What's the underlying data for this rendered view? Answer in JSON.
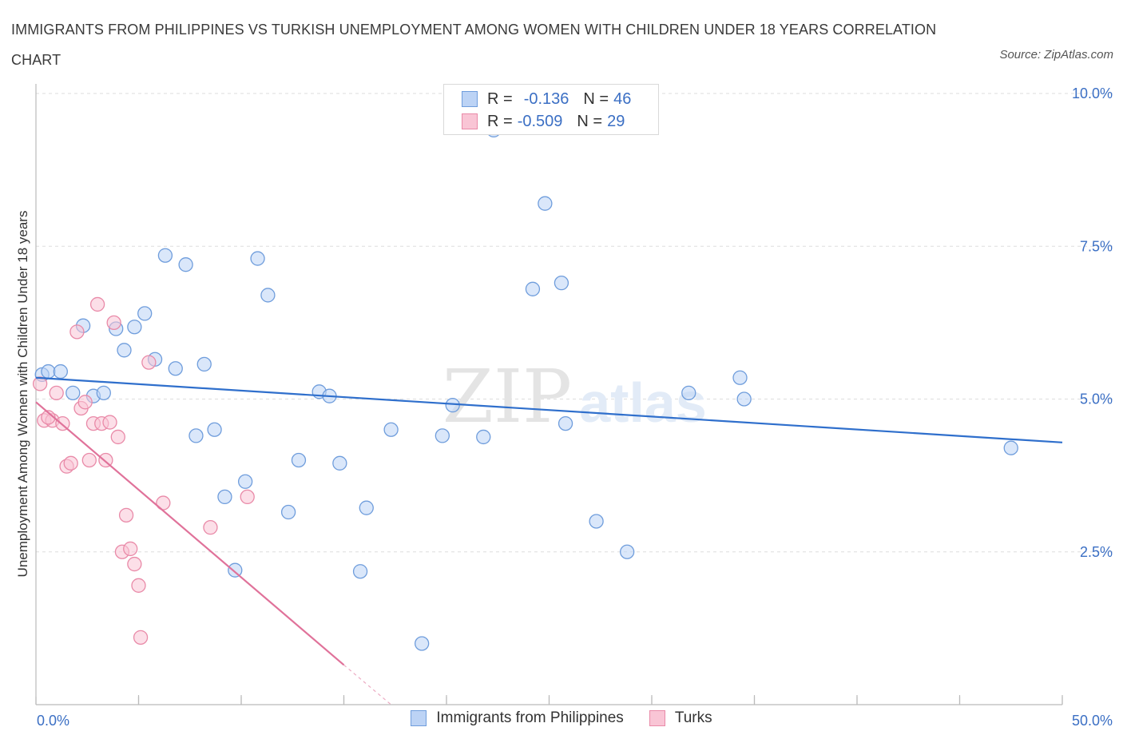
{
  "header": {
    "title": "IMMIGRANTS FROM PHILIPPINES VS TURKISH UNEMPLOYMENT AMONG WOMEN WITH CHILDREN UNDER 18 YEARS CORRELATION CHART",
    "source": "Source: ZipAtlas.com"
  },
  "watermark": {
    "zip": "ZIP",
    "atlas": "atlas"
  },
  "legend": {
    "r_label": "R =",
    "n_label": "N =",
    "rows": [
      {
        "r": "-0.136",
        "n": "46"
      },
      {
        "r": "-0.509",
        "n": "29"
      }
    ]
  },
  "colors": {
    "series1_fill": "#bcd3f5",
    "series1_stroke": "#6f9ddc",
    "series1_line": "#2f6fcc",
    "series2_fill": "#f9c5d5",
    "series2_stroke": "#e98aa8",
    "series2_line": "#e0729a",
    "axis_text": "#3b6fc4",
    "grid": "#dddddd"
  },
  "chart_data": {
    "type": "scatter",
    "title": "IMMIGRANTS FROM PHILIPPINES VS TURKISH UNEMPLOYMENT AMONG WOMEN WITH CHILDREN UNDER 18 YEARS CORRELATION CHART",
    "ylabel": "Unemployment Among Women with Children Under 18 years",
    "xlabel": "",
    "xlim": [
      0,
      50
    ],
    "ylim": [
      0,
      10.0
    ],
    "x_tick_labels": [
      "0.0%",
      "50.0%"
    ],
    "y_ticks": [
      2.5,
      5.0,
      7.5,
      10.0
    ],
    "y_tick_labels": [
      "2.5%",
      "5.0%",
      "7.5%",
      "10.0%"
    ],
    "grid": true,
    "legend_position": "top-center",
    "series": [
      {
        "name": "Immigrants from Philippines",
        "r": -0.136,
        "n": 46,
        "trend": {
          "x": [
            0,
            50
          ],
          "y": [
            5.35,
            4.29
          ]
        },
        "points": [
          [
            0.3,
            5.4
          ],
          [
            0.6,
            5.45
          ],
          [
            1.2,
            5.45
          ],
          [
            1.8,
            5.1
          ],
          [
            2.3,
            6.2
          ],
          [
            2.8,
            5.05
          ],
          [
            3.3,
            5.1
          ],
          [
            3.9,
            6.15
          ],
          [
            4.3,
            5.8
          ],
          [
            4.8,
            6.18
          ],
          [
            5.3,
            6.4
          ],
          [
            5.8,
            5.65
          ],
          [
            6.3,
            7.35
          ],
          [
            6.8,
            5.5
          ],
          [
            7.3,
            7.2
          ],
          [
            7.8,
            4.4
          ],
          [
            8.2,
            5.57
          ],
          [
            8.7,
            4.5
          ],
          [
            9.2,
            3.4
          ],
          [
            9.7,
            2.2
          ],
          [
            10.2,
            3.65
          ],
          [
            10.8,
            7.3
          ],
          [
            11.3,
            6.7
          ],
          [
            12.3,
            3.15
          ],
          [
            12.8,
            4.0
          ],
          [
            13.8,
            5.12
          ],
          [
            14.3,
            5.05
          ],
          [
            14.8,
            3.95
          ],
          [
            15.8,
            2.18
          ],
          [
            16.1,
            3.22
          ],
          [
            17.3,
            4.5
          ],
          [
            18.8,
            1.0
          ],
          [
            19.8,
            4.4
          ],
          [
            20.3,
            4.9
          ],
          [
            21.8,
            4.38
          ],
          [
            22.3,
            9.4
          ],
          [
            24.2,
            6.8
          ],
          [
            24.8,
            8.2
          ],
          [
            25.6,
            6.9
          ],
          [
            25.8,
            4.6
          ],
          [
            27.3,
            3.0
          ],
          [
            28.8,
            2.5
          ],
          [
            31.8,
            5.1
          ],
          [
            34.3,
            5.35
          ],
          [
            34.5,
            5.0
          ],
          [
            47.5,
            4.2
          ]
        ]
      },
      {
        "name": "Turks",
        "r": -0.509,
        "n": 29,
        "trend": {
          "x": [
            0,
            15.0
          ],
          "y": [
            4.95,
            0.65
          ]
        },
        "trend_dashed": {
          "x": [
            15.0,
            17.3
          ],
          "y": [
            0.65,
            0.0
          ]
        },
        "points": [
          [
            0.2,
            5.25
          ],
          [
            0.4,
            4.65
          ],
          [
            0.8,
            4.65
          ],
          [
            1.0,
            5.1
          ],
          [
            1.3,
            4.6
          ],
          [
            1.5,
            3.9
          ],
          [
            1.7,
            3.95
          ],
          [
            2.0,
            6.1
          ],
          [
            2.2,
            4.85
          ],
          [
            2.4,
            4.95
          ],
          [
            2.6,
            4.0
          ],
          [
            2.8,
            4.6
          ],
          [
            3.0,
            6.55
          ],
          [
            3.2,
            4.6
          ],
          [
            3.4,
            4.0
          ],
          [
            3.6,
            4.62
          ],
          [
            3.8,
            6.25
          ],
          [
            4.0,
            4.38
          ],
          [
            4.2,
            2.5
          ],
          [
            4.4,
            3.1
          ],
          [
            4.6,
            2.55
          ],
          [
            4.8,
            2.3
          ],
          [
            5.0,
            1.95
          ],
          [
            5.1,
            1.1
          ],
          [
            5.5,
            5.6
          ],
          [
            6.2,
            3.3
          ],
          [
            8.5,
            2.9
          ],
          [
            10.3,
            3.4
          ],
          [
            0.6,
            4.7
          ]
        ]
      }
    ]
  }
}
